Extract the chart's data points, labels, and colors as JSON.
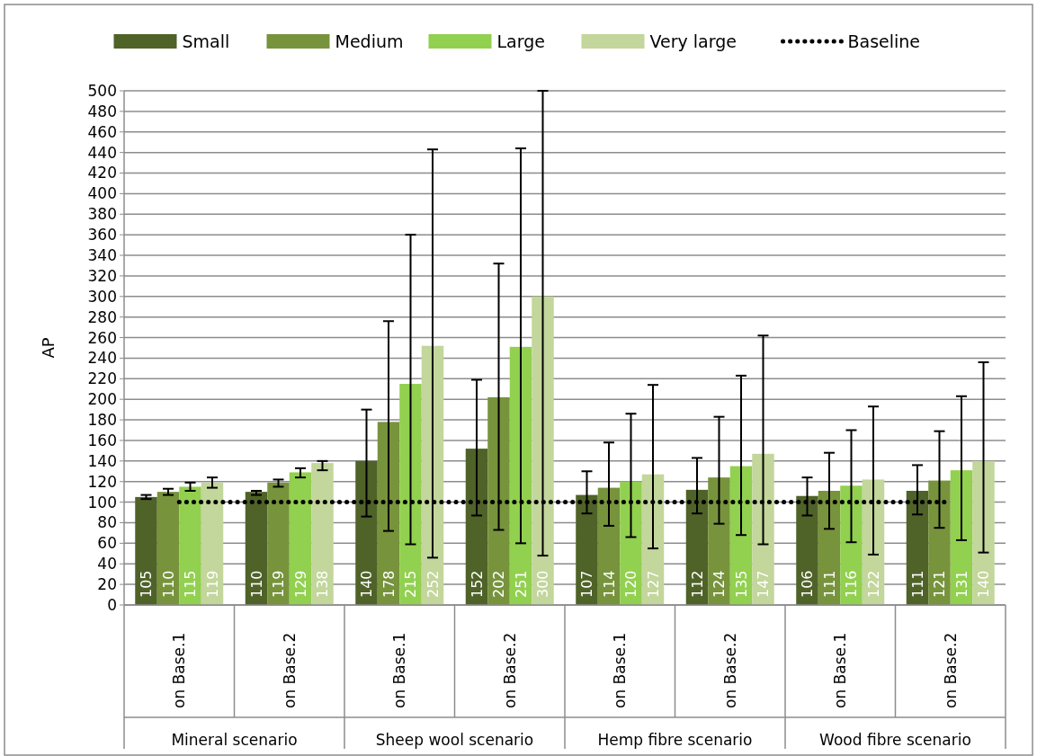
{
  "chart_data": {
    "type": "bar",
    "ylabel": "AP",
    "categories": [
      "on Base.1",
      "on Base.2",
      "on Base.1",
      "on Base.2",
      "on Base.1",
      "on Base.2",
      "on Base.1",
      "on Base.2"
    ],
    "annotations": [
      "Mineral scenario",
      "Sheep wool scenario",
      "Hemp fibre scenario",
      "Wood fibre scenario"
    ],
    "series": [
      {
        "name": "Small",
        "color": "#4f6228",
        "values": [
          105,
          110,
          140,
          152,
          107,
          112,
          106,
          111
        ],
        "value_labels": [
          "105",
          "110",
          "140",
          "152",
          "107",
          "112",
          "106",
          "111"
        ],
        "errors": [
          [
            103,
            107
          ],
          [
            107,
            111
          ],
          [
            86,
            190
          ],
          [
            87,
            219
          ],
          [
            89,
            130
          ],
          [
            89,
            143
          ],
          [
            87,
            124
          ],
          [
            88,
            136
          ]
        ]
      },
      {
        "name": "Medium",
        "color": "#77933c",
        "values": [
          110,
          119,
          178,
          202,
          114,
          124,
          111,
          121
        ],
        "value_labels": [
          "110",
          "119",
          "178",
          "202",
          "114",
          "124",
          "111",
          "121"
        ],
        "errors": [
          [
            107,
            113
          ],
          [
            115,
            122
          ],
          [
            72,
            276
          ],
          [
            73,
            332
          ],
          [
            77,
            158
          ],
          [
            79,
            183
          ],
          [
            74,
            148
          ],
          [
            75,
            169
          ]
        ]
      },
      {
        "name": "Large",
        "color": "#92d050",
        "values": [
          115,
          129,
          215,
          251,
          120,
          135,
          116,
          131
        ],
        "value_labels": [
          "115",
          "129",
          "215",
          "251",
          "120",
          "135",
          "116",
          "131"
        ],
        "errors": [
          [
            111,
            119
          ],
          [
            124,
            133
          ],
          [
            59,
            360
          ],
          [
            60,
            444
          ],
          [
            66,
            186
          ],
          [
            68,
            223
          ],
          [
            61,
            170
          ],
          [
            63,
            203
          ]
        ]
      },
      {
        "name": "Very large",
        "color": "#c3d69b",
        "values": [
          119,
          138,
          252,
          300,
          127,
          147,
          122,
          140
        ],
        "value_labels": [
          "119",
          "138",
          "252",
          "300",
          "127",
          "147",
          "122",
          "140"
        ],
        "errors": [
          [
            114,
            124
          ],
          [
            131,
            140
          ],
          [
            46,
            443
          ],
          [
            48,
            500
          ],
          [
            55,
            214
          ],
          [
            59,
            262
          ],
          [
            49,
            193
          ],
          [
            51,
            236
          ]
        ]
      },
      {
        "name": "Baseline",
        "type": "line",
        "color": "#000000",
        "line_style": "dotted",
        "marker": "none",
        "values": [
          100,
          100,
          100,
          100,
          100,
          100,
          100,
          100
        ]
      }
    ],
    "ylim": [
      0,
      500
    ],
    "yticks": [
      0,
      20,
      40,
      60,
      80,
      100,
      120,
      140,
      160,
      180,
      200,
      220,
      240,
      260,
      280,
      300,
      320,
      340,
      360,
      380,
      400,
      420,
      440,
      460,
      480,
      500
    ],
    "grid": "y",
    "legend": "top"
  }
}
